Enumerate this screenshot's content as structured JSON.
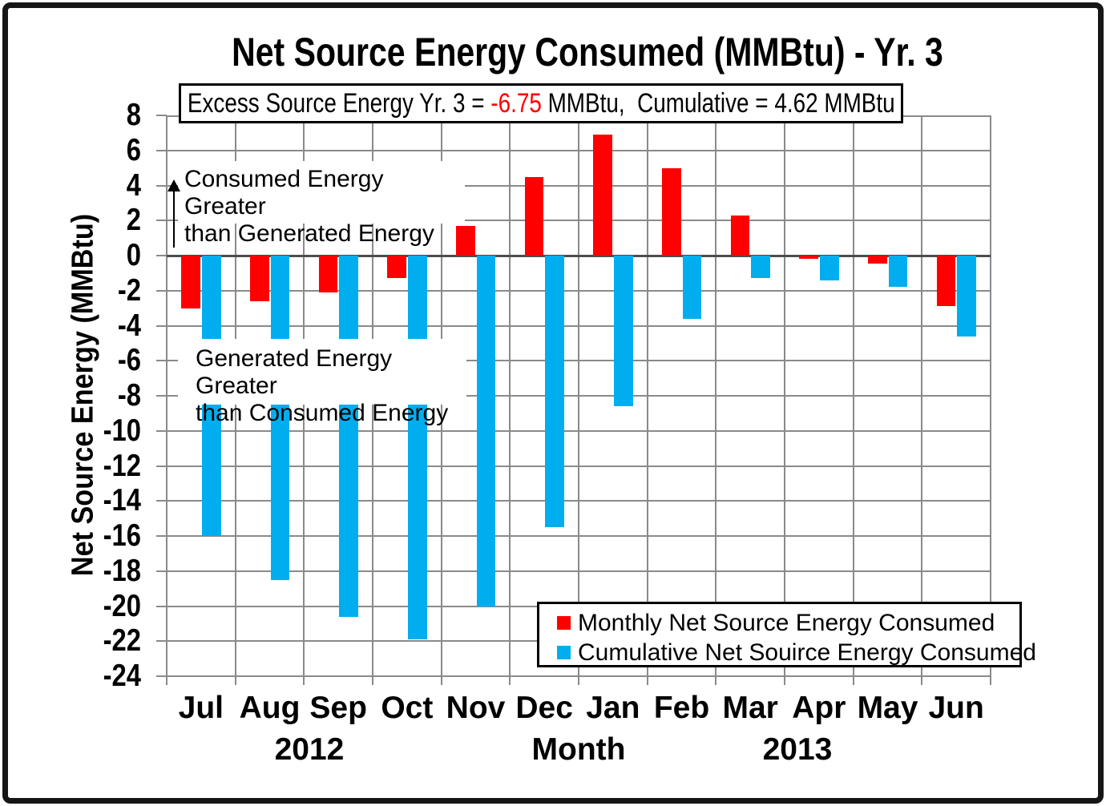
{
  "title": {
    "text": "Net Source Energy Consumed (MMBtu) - Yr. 3"
  },
  "summary": {
    "prefix": "Excess Source Energy Yr. 3 = ",
    "excess_value": "-6.75",
    "suffix": " MMBtu,  Cumulative = 4.62 MMBtu",
    "excess_color": "#FF0000"
  },
  "axes": {
    "y_title": "Net Source Energy (MMBtu)",
    "x_title": "Month",
    "year_left": "2012",
    "year_right": "2013",
    "y_max": 8,
    "y_min": -24,
    "y_tick_step": 2
  },
  "annotations": {
    "consumed": {
      "line1": "Consumed Energy Greater",
      "line2": "than Generated Energy"
    },
    "generated": {
      "line1": "Generated Energy Greater",
      "line2": "than Consumed Energy"
    }
  },
  "legend": {
    "items": [
      {
        "label": "Monthly Net Source Energy Consumed",
        "color": "#FF0000"
      },
      {
        "label": "Cumulative Net Souirce Energy Consumed",
        "color": "#00AEEF"
      }
    ]
  },
  "colors": {
    "monthly_bar": "#FF0000",
    "cumulative_bar": "#00AEEF",
    "gridline": "#8A8A8A",
    "zero_line": "#4D4D4D",
    "excess_value_text": "#FF0000"
  },
  "chart_data": {
    "type": "bar",
    "title": "Net Source Energy Consumed (MMBtu) - Yr. 3",
    "xlabel": "Month",
    "ylabel": "Net Source Energy (MMBtu)",
    "categories": [
      "Jul",
      "Aug",
      "Sep",
      "Oct",
      "Nov",
      "Dec",
      "Jan",
      "Feb",
      "Mar",
      "Apr",
      "May",
      "Jun"
    ],
    "category_years": [
      2012,
      2012,
      2012,
      2012,
      2012,
      2012,
      2013,
      2013,
      2013,
      2013,
      2013,
      2013
    ],
    "series": [
      {
        "name": "Monthly Net Source Energy Consumed",
        "color": "#FF0000",
        "values": [
          -3.0,
          -2.6,
          -2.1,
          -1.3,
          1.7,
          4.5,
          6.9,
          5.0,
          2.3,
          -0.2,
          -0.45,
          -2.9
        ]
      },
      {
        "name": "Cumulative Net Souirce Energy Consumed",
        "color": "#00AEEF",
        "values": [
          -16.0,
          -18.5,
          -20.6,
          -21.9,
          -20.0,
          -15.5,
          -8.6,
          -3.6,
          -1.3,
          -1.4,
          -1.8,
          -4.6
        ]
      }
    ],
    "ylim": [
      -24,
      8
    ],
    "ytick_step": 2,
    "grid": true,
    "legend_position": "bottom-right",
    "excess_yr3_mmbtu": -6.75,
    "cumulative_mmbtu": 4.62
  }
}
